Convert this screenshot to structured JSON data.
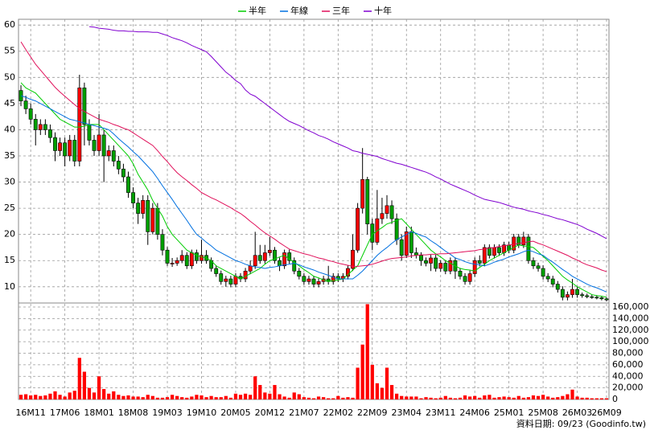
{
  "chart_data": {
    "type": "candlestick",
    "categories": [
      null,
      null,
      "16M11",
      null,
      null,
      null,
      null,
      null,
      null,
      "17M06",
      null,
      null,
      null,
      null,
      null,
      null,
      "18M01",
      null,
      null,
      null,
      null,
      null,
      null,
      "18M08",
      null,
      null,
      null,
      null,
      null,
      null,
      "19M03",
      null,
      null,
      null,
      null,
      null,
      null,
      "19M10",
      null,
      null,
      null,
      null,
      null,
      null,
      "20M05",
      null,
      null,
      null,
      null,
      null,
      null,
      "20M12",
      null,
      null,
      null,
      null,
      null,
      null,
      "21M07",
      null,
      null,
      null,
      null,
      null,
      null,
      "22M02",
      null,
      null,
      null,
      null,
      null,
      null,
      "22M09",
      null,
      null,
      null,
      null,
      null,
      null,
      "23M04",
      null,
      null,
      null,
      null,
      null,
      null,
      "23M11",
      null,
      null,
      null,
      null,
      null,
      null,
      "24M06",
      null,
      null,
      null,
      null,
      null,
      null,
      "25M01",
      null,
      null,
      null,
      null,
      null,
      null,
      "25M08",
      null,
      null,
      null,
      null,
      null,
      null,
      "26M03",
      null,
      null,
      null,
      null,
      null,
      "26M09"
    ],
    "open": [
      47.5,
      45.5,
      44,
      42,
      40,
      41,
      40,
      38.5,
      36,
      37.5,
      35,
      38,
      34,
      48,
      41,
      38,
      36,
      39,
      35,
      36,
      34,
      32.5,
      31,
      28,
      26,
      24,
      26.5,
      20.5,
      25,
      20,
      17,
      14.5,
      14.5,
      15,
      16,
      14,
      16.5,
      15,
      16,
      15,
      13.5,
      12.5,
      11,
      11.5,
      10.5,
      12,
      11.5,
      13,
      14,
      16,
      15,
      16.5,
      17,
      15,
      14,
      16.5,
      15,
      13,
      12,
      11,
      11.5,
      10.5,
      11,
      11.5,
      11,
      12,
      11.5,
      12,
      13.5,
      17,
      25,
      30.5,
      22,
      18.5,
      23,
      24,
      25.5,
      23,
      19,
      16,
      20.5,
      16.5,
      16,
      15,
      14.5,
      15.5,
      13.5,
      14.5,
      13,
      15,
      13,
      12,
      11,
      12.5,
      15,
      14.5,
      17.5,
      16,
      17.5,
      16.5,
      18,
      17,
      19.5,
      18,
      19.5,
      15,
      14,
      13.5,
      12,
      11.5,
      10.5,
      9.5,
      8,
      8.5,
      9.5,
      8.5,
      8.3,
      8.1,
      8,
      7.9,
      7.7
    ],
    "high": [
      48.5,
      46.5,
      45,
      43,
      42,
      42,
      41,
      39.5,
      38.5,
      38.5,
      39,
      39,
      50.5,
      49,
      42,
      39,
      43,
      40,
      37,
      37,
      35,
      33.5,
      32,
      29,
      27,
      27.5,
      27.5,
      26,
      26,
      21,
      17.6,
      15.5,
      15.6,
      17,
      16.6,
      17.1,
      17.1,
      19,
      17,
      15.6,
      14.1,
      13.1,
      12.1,
      12.1,
      12.6,
      12.6,
      13.6,
      15,
      20.5,
      18,
      18,
      19.5,
      17.6,
      15.6,
      17.1,
      17.1,
      15.6,
      13.6,
      12.6,
      12.1,
      12.1,
      11.6,
      12.1,
      14,
      12.6,
      12.6,
      12.6,
      14.1,
      20,
      26,
      36.5,
      31,
      23,
      28.5,
      27,
      27.5,
      26.5,
      24,
      20,
      21.5,
      21.5,
      17.5,
      16.6,
      15.6,
      16.1,
      16.1,
      15.1,
      15.1,
      15.6,
      15.6,
      13.6,
      12.6,
      13.1,
      15.6,
      16,
      18.1,
      18.1,
      18.1,
      18.1,
      18.6,
      18.6,
      20.1,
      20.1,
      20.5,
      20.1,
      15.6,
      14.6,
      14.1,
      12.6,
      12.1,
      11.1,
      10.1,
      9.1,
      11.5,
      10.1,
      8.9,
      8.7,
      8.5,
      8.4,
      8.2,
      8
    ],
    "low": [
      44.5,
      43,
      41,
      37,
      39,
      39,
      37.5,
      34,
      35,
      33,
      34,
      33,
      33,
      37,
      37,
      35,
      35,
      30,
      34,
      33,
      31.5,
      30,
      27,
      25,
      22,
      23,
      18,
      20,
      19,
      16,
      14,
      13.8,
      14,
      14.5,
      13.4,
      13.4,
      14.4,
      14.4,
      14.4,
      12.9,
      11.9,
      10.4,
      10,
      9.9,
      9.9,
      10.9,
      10.9,
      12.4,
      13.4,
      14.4,
      14.4,
      15.9,
      14.4,
      13,
      13.4,
      14.4,
      12.4,
      11.4,
      10.4,
      10.4,
      9.9,
      9.9,
      10.4,
      10.4,
      10.4,
      10.9,
      10.9,
      11.4,
      13,
      16.5,
      24,
      20,
      17,
      18,
      22,
      23,
      22,
      18,
      15,
      15.5,
      15.5,
      15.4,
      14,
      13.9,
      13,
      12.9,
      12.9,
      12.4,
      12.4,
      11.5,
      11.4,
      10.4,
      10.4,
      11.9,
      13.9,
      13.9,
      15.4,
      15.4,
      15.9,
      15.9,
      16.4,
      16.4,
      17.4,
      17.4,
      14.4,
      13.4,
      12.9,
      11.4,
      10.9,
      9.9,
      8.9,
      7.4,
      7.4,
      7.9,
      7.9,
      7.9,
      7.8,
      7.7,
      7.6,
      7.4,
      7.2
    ],
    "close": [
      45.5,
      44,
      42,
      40,
      41,
      40,
      38.5,
      36,
      37.5,
      35,
      38,
      34,
      48,
      41,
      38,
      36,
      39,
      35,
      36,
      34,
      32.5,
      31,
      28,
      26,
      24,
      26.5,
      20.5,
      25,
      20,
      17,
      14.5,
      14.5,
      15,
      16,
      14,
      16.5,
      15,
      16,
      15,
      13.5,
      12.5,
      11,
      11.5,
      10.5,
      12,
      11.5,
      13,
      14,
      16,
      15,
      16.5,
      17,
      15,
      14,
      16.5,
      15,
      13,
      12,
      11,
      11.5,
      10.5,
      11,
      11.5,
      11,
      12,
      11.5,
      12,
      13.5,
      17,
      25,
      30.5,
      22,
      18.5,
      23,
      24,
      25.5,
      23,
      19,
      16,
      20.5,
      16.5,
      16,
      15,
      14.5,
      15.5,
      13.5,
      14.5,
      13,
      15,
      13,
      12,
      11,
      12.5,
      15,
      14.5,
      17.5,
      16,
      17.5,
      16.5,
      18,
      17,
      19.5,
      18,
      19.5,
      15,
      14,
      13.5,
      12,
      11.5,
      10.5,
      9.5,
      8,
      8.5,
      9.5,
      8.5,
      8.3,
      8.1,
      8,
      7.9,
      7.7,
      7.5
    ],
    "up_color": "#ff0000",
    "down_color": "#00a000",
    "ylim": [
      6.9,
      61.1
    ],
    "yticks": [
      10,
      15,
      20,
      25,
      30,
      35,
      40,
      45,
      50,
      55,
      60
    ],
    "grid": true,
    "legend": "top",
    "lines": [
      {
        "name": "半年",
        "color": "#00cc00",
        "values": [
          49,
          48,
          47.5,
          47,
          46,
          45,
          44,
          43,
          42,
          41.5,
          41,
          40.5,
          40.5,
          40.7,
          41,
          41,
          41,
          40,
          39,
          38,
          37,
          36,
          35,
          33.5,
          31.5,
          30,
          28.5,
          26.5,
          25,
          23.5,
          21.5,
          20,
          19,
          18,
          17,
          16.5,
          16,
          15.7,
          15.5,
          15,
          14,
          13.5,
          13,
          12.5,
          12,
          11.5,
          12,
          12.5,
          13,
          13.5,
          14.3,
          15,
          15.3,
          15.7,
          16,
          15.3,
          14.7,
          14,
          13.3,
          12.7,
          12,
          11.7,
          11.3,
          11,
          11.2,
          11.3,
          11.5,
          12.3,
          13.2,
          14,
          16,
          18,
          20,
          20.7,
          21.3,
          22,
          22.3,
          22.7,
          23,
          22,
          21,
          20,
          19,
          18,
          17,
          16.3,
          15.7,
          15,
          14.5,
          14,
          13.5,
          13.3,
          13.2,
          13,
          13.7,
          14.3,
          15,
          15.5,
          16,
          16.5,
          17,
          17.5,
          18,
          17.8,
          17.7,
          17.5,
          16.7,
          15.8,
          15,
          14,
          13,
          12,
          11.3,
          10.7,
          10,
          9.5,
          9,
          8.5,
          8.3,
          8.2,
          8
        ]
      },
      {
        "name": "年線",
        "color": "#0070e0",
        "values": [
          46.5,
          46.2,
          45.8,
          45.5,
          45,
          44.5,
          44,
          43.5,
          43,
          42.5,
          42,
          41.8,
          41.5,
          41.3,
          41,
          40.8,
          40.5,
          40.3,
          40,
          39.2,
          38.3,
          37.5,
          36.7,
          35.8,
          35,
          34,
          33,
          32,
          30.7,
          29.3,
          28,
          26.7,
          25.3,
          24,
          22.7,
          21.3,
          20,
          19.3,
          18.5,
          17.8,
          17,
          16.5,
          16,
          15.5,
          15,
          14.7,
          14.3,
          14,
          13.8,
          13.7,
          13.5,
          13.7,
          13.8,
          14,
          14.2,
          14.3,
          14.5,
          14.2,
          13.8,
          13.5,
          13.2,
          12.8,
          12.5,
          12.2,
          11.8,
          11.5,
          11.5,
          11.5,
          11.5,
          12.2,
          13,
          14,
          15,
          16,
          16.8,
          17.5,
          18.3,
          19,
          19.5,
          20,
          20.5,
          20.2,
          19.8,
          19.5,
          18.8,
          18.2,
          17.5,
          16.8,
          16.2,
          15.5,
          15.2,
          14.8,
          14.5,
          14.3,
          14.2,
          14,
          14.3,
          14.7,
          15,
          15.3,
          15.7,
          16,
          16.3,
          16.7,
          17,
          16.7,
          16.3,
          16,
          15.3,
          14.7,
          14,
          13.3,
          12.7,
          12,
          11.5,
          11,
          10.5,
          10.1,
          9.8,
          9.4,
          9
        ]
      },
      {
        "name": "三年",
        "color": "#e0105a",
        "values": [
          56.8,
          55.3,
          53.9,
          52.5,
          51.4,
          50.3,
          49.2,
          48.1,
          47.2,
          46.4,
          45.6,
          44.8,
          44,
          43.5,
          43,
          42.5,
          42,
          41.7,
          41.4,
          41,
          40.7,
          40.3,
          40,
          39.4,
          38.8,
          38.2,
          37.6,
          37,
          36,
          34.9,
          33.9,
          32.8,
          31.8,
          31,
          30.3,
          29.5,
          28.8,
          28,
          27.5,
          27,
          26.6,
          26.1,
          25.6,
          25.1,
          24.5,
          24,
          23.3,
          22.5,
          21.8,
          21,
          20.3,
          19.7,
          19.1,
          18.4,
          17.8,
          17.2,
          16.9,
          16.6,
          16.3,
          16.1,
          15.8,
          15.5,
          15.3,
          15,
          14.8,
          14.5,
          14.3,
          14.1,
          13.9,
          13.9,
          14,
          14.1,
          14.3,
          14.6,
          14.9,
          15.2,
          15.4,
          15.5,
          15.6,
          15.7,
          15.9,
          16,
          16.1,
          16.1,
          16.2,
          16.2,
          16.3,
          16.3,
          16.4,
          16.5,
          16.6,
          16.7,
          16.8,
          16.9,
          17.1,
          17.2,
          17.4,
          17.5,
          17.7,
          17.8,
          18,
          18.1,
          18.3,
          18.4,
          18.6,
          18.7,
          18.3,
          18,
          17.6,
          17.2,
          16.8,
          16.4,
          16,
          15.5,
          15.1,
          14.6,
          14.2,
          13.9,
          13.6,
          13.2,
          12.9
        ]
      },
      {
        "name": "十年",
        "color": "#8000d0",
        "values": [
          null,
          null,
          null,
          null,
          null,
          null,
          null,
          null,
          null,
          null,
          null,
          null,
          null,
          null,
          59.7,
          59.6,
          59.4,
          59.3,
          59.2,
          59,
          58.9,
          58.9,
          58.8,
          58.8,
          58.7,
          58.7,
          58.7,
          58.6,
          58.6,
          58.3,
          58,
          57.6,
          57.3,
          57,
          56.6,
          56.1,
          55.7,
          55.3,
          54.9,
          54,
          53,
          52,
          51,
          50.3,
          49.4,
          48.8,
          47.6,
          46.8,
          46.4,
          45.7,
          45,
          44.3,
          43.6,
          42.9,
          42.2,
          41.6,
          41.2,
          40.8,
          40.3,
          39.8,
          39.4,
          38.9,
          38.6,
          38.2,
          37.7,
          37.3,
          36.9,
          36.5,
          36,
          35.8,
          35.5,
          35.3,
          35.1,
          34.9,
          34.5,
          34.2,
          33.9,
          33.6,
          33.4,
          33.1,
          32.8,
          32.5,
          32.2,
          31.9,
          31.5,
          31,
          30.6,
          30.1,
          29.6,
          29.2,
          28.8,
          28.4,
          28,
          27.5,
          27.1,
          26.7,
          26.5,
          26.3,
          26.1,
          25.8,
          25.5,
          25.2,
          25,
          24.8,
          24.5,
          24.3,
          24.1,
          23.8,
          23.6,
          23.3,
          23,
          22.8,
          22.5,
          22.2,
          21.9,
          21.5,
          21,
          20.6,
          20.2,
          19.7,
          19.2
        ]
      }
    ],
    "volume": {
      "color": "#ff0000",
      "ylim": [
        0,
        167000
      ],
      "yticks": [
        0,
        {
          "value": 20000,
          "label": "20,000"
        },
        {
          "value": 40000,
          "label": "40,000"
        },
        {
          "value": 60000,
          "label": "60,000"
        },
        {
          "value": 80000,
          "label": "80,000"
        },
        {
          "value": 100000,
          "label": "100,000"
        },
        {
          "value": 120000,
          "label": "120,000"
        },
        {
          "value": 140000,
          "label": "140,000"
        },
        {
          "value": 160000,
          "label": "160,000"
        }
      ],
      "values": [
        8000,
        9000,
        7000,
        8000,
        6000,
        7000,
        10000,
        14000,
        8000,
        5000,
        12000,
        15000,
        72000,
        48000,
        20000,
        12000,
        40000,
        18000,
        10000,
        14000,
        8000,
        6000,
        7000,
        5000,
        5000,
        4000,
        8000,
        6000,
        3000,
        3000,
        4000,
        8000,
        6000,
        4000,
        3000,
        5000,
        8000,
        7000,
        4000,
        6000,
        4000,
        4000,
        6000,
        3000,
        10000,
        8000,
        10000,
        8000,
        40000,
        25000,
        12000,
        10000,
        25000,
        9000,
        5000,
        3000,
        12000,
        9000,
        4000,
        3000,
        2000,
        5000,
        4000,
        2000,
        2000,
        6000,
        3000,
        4000,
        3000,
        55000,
        95000,
        165000,
        60000,
        28000,
        20000,
        55000,
        25000,
        10000,
        6000,
        5000,
        5000,
        5000,
        2000,
        4000,
        3000,
        2000,
        3000,
        6000,
        3000,
        2000,
        3000,
        7000,
        5000,
        6000,
        3000,
        7000,
        8000,
        3000,
        4000,
        5000,
        4000,
        3000,
        6000,
        3000,
        4000,
        7000,
        6000,
        8000,
        5000,
        3000,
        4000,
        6000,
        9000,
        17000,
        5000,
        3000,
        3000,
        2000,
        2000,
        2000,
        2000
      ]
    },
    "footer": "資料日期: 09/23  (Goodinfo.tw)"
  }
}
